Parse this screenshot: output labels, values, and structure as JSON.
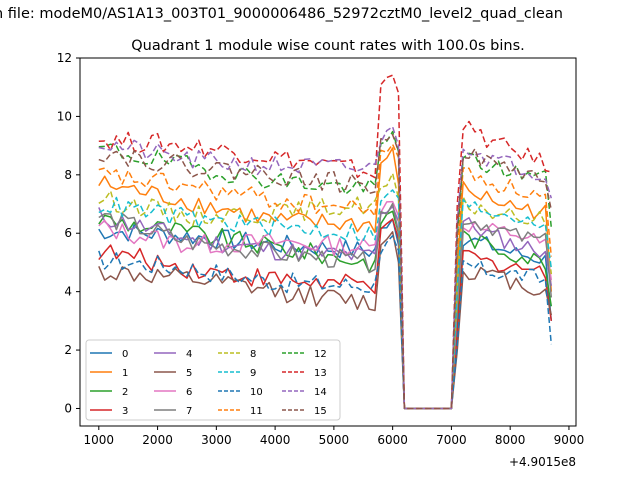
{
  "figure": {
    "suptitle": "n file: modeM0/AS1A13_003T01_9000006486_52972cztM0_level2_quad_clean",
    "offset_label": "+4.9015e8"
  },
  "chart_data": {
    "type": "line",
    "title": "Quadrant 1 module wise count rates with 100.0s bins.",
    "xlabel": "",
    "ylabel": "",
    "x_offset": 490150000,
    "xlim": [
      680,
      9120
    ],
    "ylim": [
      -0.6,
      12.0
    ],
    "x_ticks": [
      1000,
      2000,
      3000,
      4000,
      5000,
      6000,
      7000,
      8000,
      9000
    ],
    "y_ticks": [
      0,
      2,
      4,
      6,
      8,
      10,
      12
    ],
    "x_tick_labels": [
      "1000",
      "2000",
      "3000",
      "4000",
      "5000",
      "6000",
      "7000",
      "8000",
      "9000"
    ],
    "y_tick_labels": [
      "0",
      "2",
      "4",
      "6",
      "8",
      "10",
      "12"
    ],
    "grid": false,
    "legend": {
      "position": "lower-left",
      "columns": 4
    },
    "series": [
      {
        "name": "0",
        "color": "#1f77b4",
        "dash": "solid",
        "seg1": [
          6.1,
          5.9,
          5.6,
          5.4
        ],
        "seg2": [
          5.9,
          5.6,
          5.3,
          5.1
        ],
        "end": [
          6.5,
          5.6
        ],
        "tail": 3.0
      },
      {
        "name": "1",
        "color": "#ff7f0e",
        "dash": "solid",
        "seg1": [
          7.7,
          7.1,
          6.4,
          6.3
        ],
        "seg2": [
          7.6,
          7.2,
          6.9,
          6.7
        ],
        "end": [
          8.8,
          7.7
        ],
        "tail": 4.0
      },
      {
        "name": "2",
        "color": "#2ca02c",
        "dash": "solid",
        "seg1": [
          6.5,
          6.0,
          5.5,
          5.0
        ],
        "seg2": [
          6.0,
          5.6,
          5.3,
          5.0
        ],
        "end": [
          6.8,
          6.0
        ],
        "tail": 3.5
      },
      {
        "name": "3",
        "color": "#d62728",
        "dash": "solid",
        "seg1": [
          5.4,
          4.8,
          4.4,
          4.2
        ],
        "seg2": [
          5.4,
          5.0,
          4.9,
          4.6
        ],
        "end": [
          6.4,
          5.8
        ],
        "tail": 3.0
      },
      {
        "name": "4",
        "color": "#9467bd",
        "dash": "solid",
        "seg1": [
          6.6,
          5.8,
          5.4,
          5.2
        ],
        "seg2": [
          6.5,
          6.0,
          5.6,
          5.4
        ],
        "end": [
          7.0,
          6.4
        ],
        "tail": 4.2
      },
      {
        "name": "5",
        "color": "#8c564b",
        "dash": "solid",
        "seg1": [
          4.7,
          4.4,
          4.0,
          3.6
        ],
        "seg2": [
          4.8,
          4.6,
          4.3,
          4.0
        ],
        "end": [
          6.0,
          5.0
        ],
        "tail": 3.2
      },
      {
        "name": "6",
        "color": "#e377c2",
        "dash": "solid",
        "seg1": [
          6.2,
          5.6,
          5.7,
          5.5
        ],
        "seg2": [
          6.4,
          6.1,
          6.0,
          5.6
        ],
        "end": [
          7.2,
          6.6
        ],
        "tail": 4.4
      },
      {
        "name": "7",
        "color": "#7f7f7f",
        "dash": "solid",
        "seg1": [
          6.6,
          5.7,
          5.3,
          5.0
        ],
        "seg2": [
          6.6,
          6.3,
          5.9,
          5.7
        ],
        "end": [
          7.0,
          6.0
        ],
        "tail": 3.8
      },
      {
        "name": "8",
        "color": "#bcbd22",
        "dash": "6,3",
        "seg1": [
          7.2,
          6.6,
          6.7,
          7.0
        ],
        "seg2": [
          7.0,
          6.8,
          6.5,
          6.5
        ],
        "end": [
          7.9,
          7.2
        ],
        "tail": 4.6
      },
      {
        "name": "9",
        "color": "#17becf",
        "dash": "6,3",
        "seg1": [
          7.0,
          6.5,
          6.2,
          6.0
        ],
        "seg2": [
          7.0,
          6.8,
          6.6,
          6.4
        ],
        "end": [
          7.5,
          7.2
        ],
        "tail": 4.8
      },
      {
        "name": "10",
        "color": "#1f77b4",
        "dash": "6,3",
        "seg1": [
          5.1,
          4.8,
          4.3,
          4.2
        ],
        "seg2": [
          5.0,
          4.7,
          4.6,
          4.4
        ],
        "end": [
          5.8,
          5.4
        ],
        "tail": 2.2
      },
      {
        "name": "11",
        "color": "#ff7f0e",
        "dash": "6,3",
        "seg1": [
          8.0,
          7.6,
          7.1,
          6.8
        ],
        "seg2": [
          8.3,
          7.8,
          7.5,
          7.2
        ],
        "end": [
          9.1,
          8.6
        ],
        "tail": 5.2
      },
      {
        "name": "12",
        "color": "#2ca02c",
        "dash": "6,3",
        "seg1": [
          8.9,
          8.3,
          7.8,
          7.5
        ],
        "seg2": [
          8.7,
          8.3,
          8.1,
          7.9
        ],
        "end": [
          9.4,
          8.8
        ],
        "tail": 6.2
      },
      {
        "name": "13",
        "color": "#d62728",
        "dash": "6,3",
        "seg1": [
          9.2,
          9.0,
          8.6,
          8.1
        ],
        "seg2": [
          9.8,
          9.2,
          8.8,
          8.4
        ],
        "end": [
          11.5,
          10.8
        ],
        "tail": 8.1
      },
      {
        "name": "14",
        "color": "#9467bd",
        "dash": "6,3",
        "seg1": [
          9.1,
          8.5,
          8.3,
          8.2
        ],
        "seg2": [
          9.2,
          8.6,
          8.3,
          8.0
        ],
        "end": [
          9.6,
          9.0
        ],
        "tail": 7.2
      },
      {
        "name": "15",
        "color": "#8c564b",
        "dash": "6,3",
        "seg1": [
          8.8,
          8.3,
          8.0,
          7.6
        ],
        "seg2": [
          9.0,
          8.4,
          8.2,
          7.8
        ],
        "end": [
          9.5,
          8.8
        ],
        "tail": 6.8
      }
    ]
  }
}
